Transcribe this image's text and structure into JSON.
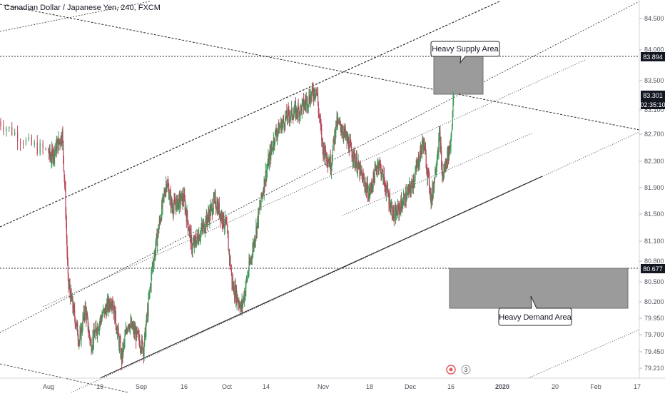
{
  "header": {
    "title": "Canadian Dollar / Japanese Yen, 240, FXCM"
  },
  "price_scale": {
    "ticks": [
      "84.500",
      "84.000",
      "83.500",
      "83.100",
      "82.700",
      "82.300",
      "81.900",
      "81.500",
      "81.100",
      "80.800",
      "80.500",
      "80.200",
      "79.950",
      "79.700",
      "79.450",
      "79.210"
    ],
    "labels": {
      "supply_level": "83.894",
      "last_price": "83.301",
      "countdown": "02:35:10",
      "demand_level": "80.677"
    },
    "colors": {
      "badge_bg": "#131722",
      "badge_text": "#ffffff"
    }
  },
  "time_axis": {
    "labels": [
      "Aug",
      "19",
      "Sep",
      "16",
      "Oct",
      "14",
      "Nov",
      "18",
      "Dec",
      "16",
      "2020",
      "20",
      "Feb",
      "17"
    ]
  },
  "annotations": {
    "supply_label": "Heavy Supply Area",
    "demand_label": "Heavy Demand Area",
    "colors": {
      "zone_fill": "#9b9b9b",
      "zone_border": "#6f6f6f",
      "lines": "#2a2a2a"
    }
  },
  "event_markers": {
    "badge_text": "3"
  },
  "chart_data": {
    "type": "candlestick",
    "title": "Canadian Dollar / Japanese Yen, 240, FXCM",
    "interval": "240",
    "x_range": [
      "Aug",
      "17"
    ],
    "y_range": [
      79.1,
      84.8
    ],
    "path_points": [
      {
        "x": "Jul 29",
        "y": 82.95
      },
      {
        "x": "Jul 31",
        "y": 82.55
      },
      {
        "x": "Aug 2",
        "y": 82.35
      },
      {
        "x": "Aug 5",
        "y": 82.6
      },
      {
        "x": "Aug 6",
        "y": 82.7
      },
      {
        "x": "Aug 7",
        "y": 81.8
      },
      {
        "x": "Aug 8",
        "y": 80.5
      },
      {
        "x": "Aug 12",
        "y": 79.6
      },
      {
        "x": "Aug 14",
        "y": 80.1
      },
      {
        "x": "Aug 16",
        "y": 79.55
      },
      {
        "x": "Aug 20",
        "y": 80.0
      },
      {
        "x": "Aug 23",
        "y": 80.25
      },
      {
        "x": "Aug 26",
        "y": 79.35
      },
      {
        "x": "Aug 28",
        "y": 79.9
      },
      {
        "x": "Sep 2",
        "y": 79.5
      },
      {
        "x": "Sep 5",
        "y": 80.7
      },
      {
        "x": "Sep 10",
        "y": 82.0
      },
      {
        "x": "Sep 12",
        "y": 81.6
      },
      {
        "x": "Sep 16",
        "y": 81.75
      },
      {
        "x": "Sep 19",
        "y": 81.0
      },
      {
        "x": "Sep 24",
        "y": 81.4
      },
      {
        "x": "Sep 27",
        "y": 81.7
      },
      {
        "x": "Oct 1",
        "y": 81.3
      },
      {
        "x": "Oct 3",
        "y": 80.45
      },
      {
        "x": "Oct 6",
        "y": 80.1
      },
      {
        "x": "Oct 10",
        "y": 81.05
      },
      {
        "x": "Oct 14",
        "y": 82.1
      },
      {
        "x": "Oct 17",
        "y": 82.7
      },
      {
        "x": "Oct 21",
        "y": 83.0
      },
      {
        "x": "Oct 25",
        "y": 83.1
      },
      {
        "x": "Oct 30",
        "y": 83.4
      },
      {
        "x": "Nov 1",
        "y": 82.5
      },
      {
        "x": "Nov 4",
        "y": 82.25
      },
      {
        "x": "Nov 6",
        "y": 82.9
      },
      {
        "x": "Nov 8",
        "y": 82.8
      },
      {
        "x": "Nov 12",
        "y": 82.4
      },
      {
        "x": "Nov 18",
        "y": 81.8
      },
      {
        "x": "Nov 21",
        "y": 82.3
      },
      {
        "x": "Nov 26",
        "y": 81.45
      },
      {
        "x": "Dec 2",
        "y": 81.95
      },
      {
        "x": "Dec 6",
        "y": 82.6
      },
      {
        "x": "Dec 9",
        "y": 81.7
      },
      {
        "x": "Dec 12",
        "y": 82.7
      },
      {
        "x": "Dec 13",
        "y": 82.05
      },
      {
        "x": "Dec 16",
        "y": 82.55
      },
      {
        "x": "Dec 17",
        "y": 83.3
      }
    ]
  }
}
